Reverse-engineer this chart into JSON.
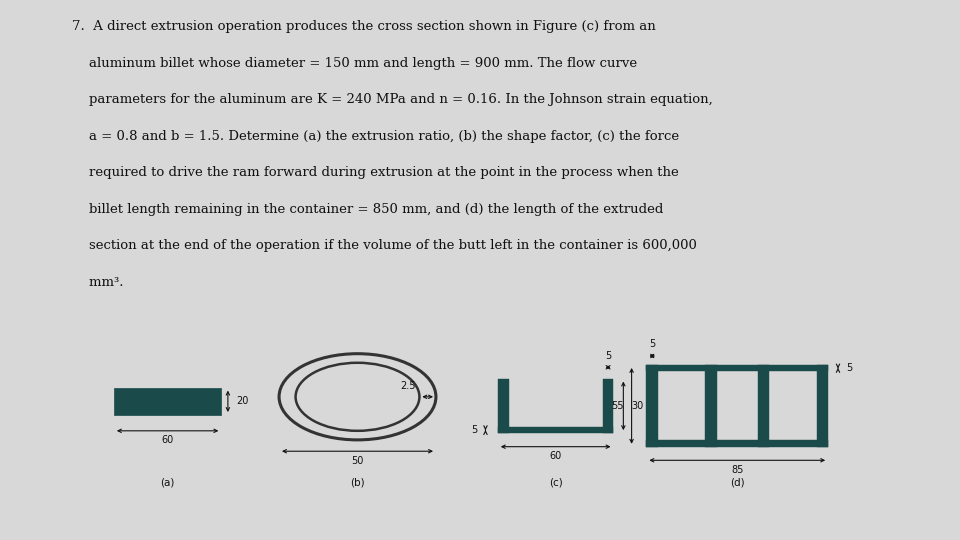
{
  "text_lines": [
    "7.  A direct extrusion operation produces the cross section shown in Figure (c) from an",
    "    aluminum billet whose diameter = 150 mm and length = 900 mm. The flow curve",
    "    parameters for the aluminum are K = 240 MPa and n = 0.16. In the Johnson strain equation,",
    "    a = 0.8 and b = 1.5. Determine (a) the extrusion ratio, (b) the shape factor, (c) the force",
    "    required to drive the ram forward during extrusion at the point in the process when the",
    "    billet length remaining in the container = 850 mm, and (d) the length of the extruded",
    "    section at the end of the operation if the volume of the butt left in the container is 600,000",
    "    mm³."
  ],
  "page_bg": "#d8d8d8",
  "panel_bg": "#a8b0b0",
  "shape_color": "#1a4a4a",
  "dim_color": "#111111",
  "text_color": "#111111",
  "font_size_text": 9.5,
  "font_size_dim": 7
}
